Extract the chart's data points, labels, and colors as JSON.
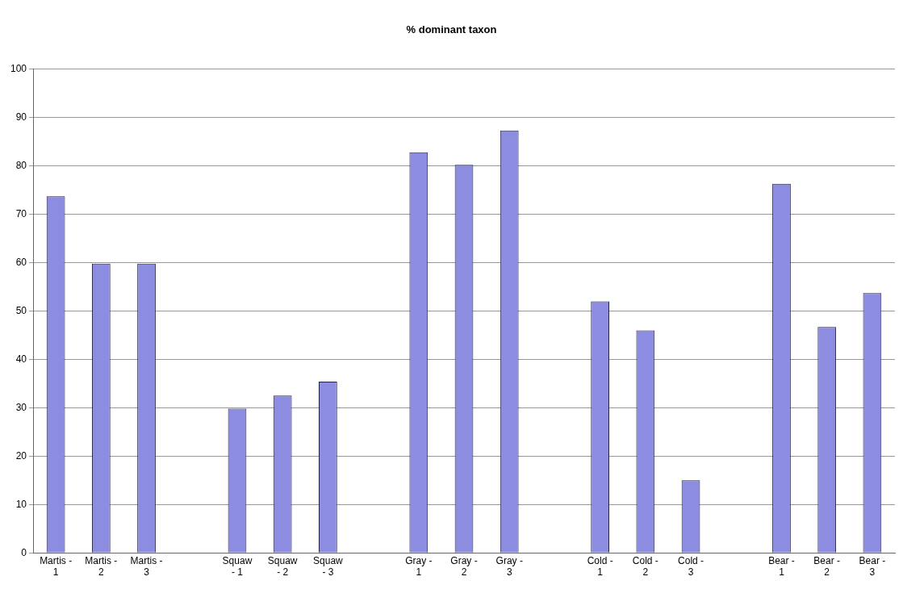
{
  "chart_data": {
    "type": "bar",
    "title": "% dominant taxon",
    "categories": [
      "Martis - 1",
      "Martis - 2",
      "Martis - 3",
      null,
      "Squaw - 1",
      "Squaw - 2",
      "Squaw - 3",
      null,
      "Gray - 1",
      "Gray - 2",
      "Gray - 3",
      null,
      "Cold - 1",
      "Cold - 2",
      "Cold - 3",
      null,
      "Bear - 1",
      "Bear - 2",
      "Bear - 3"
    ],
    "values": [
      73.7,
      59.8,
      59.8,
      null,
      29.8,
      32.5,
      35.4,
      null,
      82.8,
      80.2,
      87.3,
      null,
      52,
      46,
      15,
      null,
      76.3,
      46.7,
      53.7
    ],
    "color": "#8c8ce0",
    "ylim": [
      0,
      100
    ],
    "yticks": [
      0,
      10,
      20,
      30,
      40,
      50,
      60,
      70,
      80,
      90,
      100
    ],
    "grid": "y",
    "legend": false
  }
}
